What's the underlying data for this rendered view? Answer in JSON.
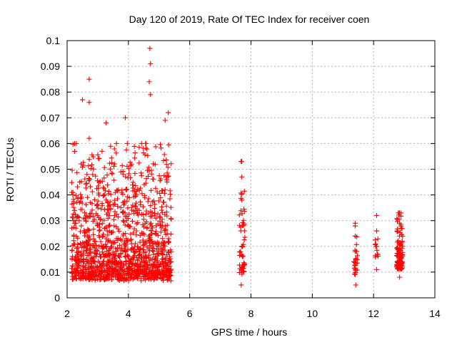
{
  "chart_data": {
    "type": "scatter",
    "title": "Day 120 of 2019, Rate Of TEC Index for receiver coen",
    "xlabel": "GPS time / hours",
    "ylabel": "ROTI / TECUs",
    "xlim": [
      2,
      14
    ],
    "ylim": [
      0,
      0.1
    ],
    "x_ticks": [
      2,
      4,
      6,
      8,
      10,
      12,
      14
    ],
    "x_tick_labels": [
      "2",
      "4",
      "6",
      "8",
      "10",
      "12",
      "14"
    ],
    "y_ticks": [
      0,
      0.01,
      0.02,
      0.03,
      0.04,
      0.05,
      0.06,
      0.07,
      0.08,
      0.09,
      0.1
    ],
    "y_tick_labels": [
      "0",
      "0.01",
      "0.02",
      "0.03",
      "0.04",
      "0.05",
      "0.06",
      "0.07",
      "0.08",
      "0.09",
      "0.1"
    ],
    "grid": true,
    "marker": "+",
    "series": [
      {
        "name": "ROTI",
        "color": "#ff0000",
        "notable_points": [
          {
            "x": 2.72,
            "y": 0.085
          },
          {
            "x": 2.5,
            "y": 0.077
          },
          {
            "x": 2.72,
            "y": 0.076
          },
          {
            "x": 3.9,
            "y": 0.07
          },
          {
            "x": 4.7,
            "y": 0.097
          },
          {
            "x": 4.72,
            "y": 0.091
          },
          {
            "x": 4.68,
            "y": 0.084
          },
          {
            "x": 4.72,
            "y": 0.079
          },
          {
            "x": 2.72,
            "y": 0.062
          },
          {
            "x": 3.27,
            "y": 0.068
          },
          {
            "x": 5.3,
            "y": 0.072
          },
          {
            "x": 5.2,
            "y": 0.069
          },
          {
            "x": 2.3,
            "y": 0.06
          },
          {
            "x": 7.7,
            "y": 0.053
          },
          {
            "x": 7.7,
            "y": 0.047
          },
          {
            "x": 7.7,
            "y": 0.038
          },
          {
            "x": 7.72,
            "y": 0.028
          },
          {
            "x": 7.7,
            "y": 0.02
          },
          {
            "x": 7.7,
            "y": 0.012
          },
          {
            "x": 7.68,
            "y": 0.005
          },
          {
            "x": 11.4,
            "y": 0.029
          },
          {
            "x": 11.4,
            "y": 0.024
          },
          {
            "x": 11.4,
            "y": 0.018
          },
          {
            "x": 11.4,
            "y": 0.011
          },
          {
            "x": 11.42,
            "y": 0.005
          },
          {
            "x": 12.1,
            "y": 0.032
          },
          {
            "x": 12.1,
            "y": 0.026
          },
          {
            "x": 12.1,
            "y": 0.02
          },
          {
            "x": 12.12,
            "y": 0.017
          },
          {
            "x": 12.1,
            "y": 0.011
          },
          {
            "x": 12.85,
            "y": 0.033
          },
          {
            "x": 12.85,
            "y": 0.029
          },
          {
            "x": 12.85,
            "y": 0.024
          },
          {
            "x": 12.85,
            "y": 0.019
          },
          {
            "x": 12.85,
            "y": 0.014
          },
          {
            "x": 12.85,
            "y": 0.008
          }
        ],
        "dense_clusters": [
          {
            "x_range": [
              2.15,
              5.4
            ],
            "y_range": [
              0.003,
              0.06
            ],
            "count": 1300
          },
          {
            "x_range": [
              7.62,
              7.8
            ],
            "y_range": [
              0.005,
              0.053
            ],
            "count": 50
          },
          {
            "x_range": [
              11.35,
              11.48
            ],
            "y_range": [
              0.005,
              0.03
            ],
            "count": 25
          },
          {
            "x_range": [
              12.05,
              12.15
            ],
            "y_range": [
              0.01,
              0.032
            ],
            "count": 10
          },
          {
            "x_range": [
              12.75,
              12.95
            ],
            "y_range": [
              0.007,
              0.033
            ],
            "count": 110
          }
        ]
      }
    ]
  }
}
